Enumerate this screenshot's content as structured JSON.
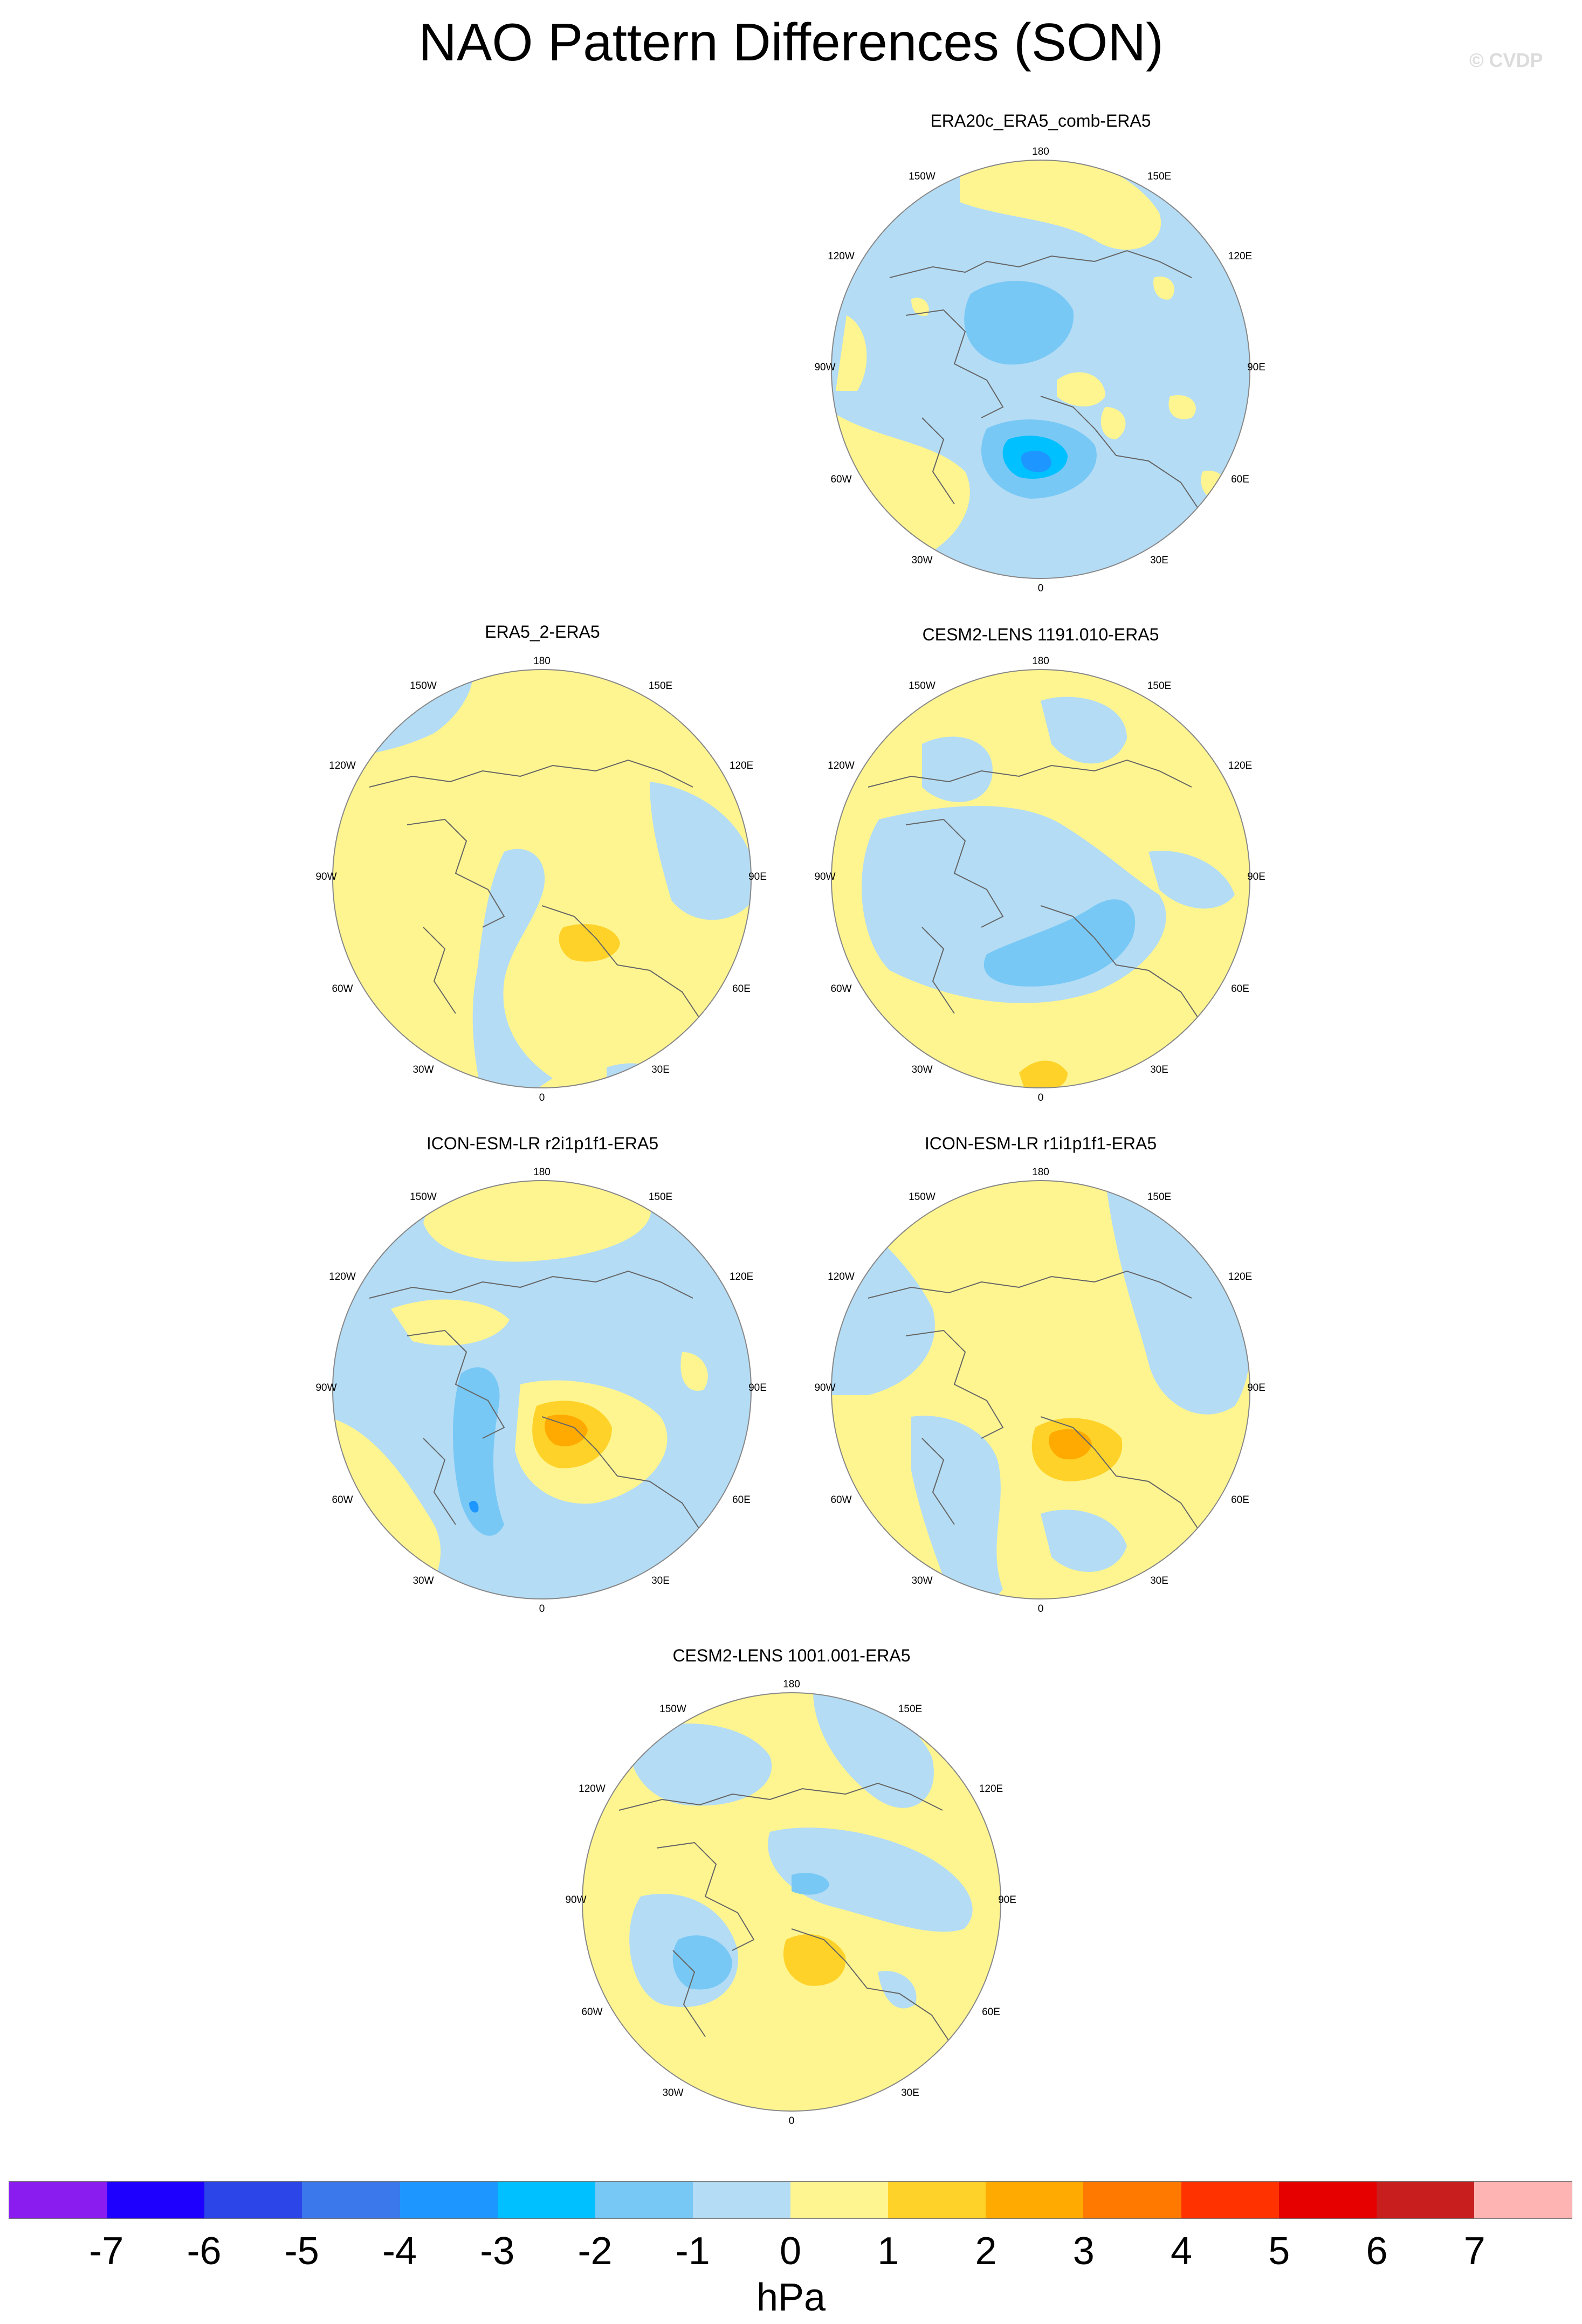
{
  "title": "NAO Pattern Differences (SON)",
  "watermark": "© CVDP",
  "map_labels": {
    "top": "180",
    "top_left": "150W",
    "top_right": "150E",
    "upper_left": "120W",
    "upper_right": "120E",
    "left": "90W",
    "right": "90E",
    "lower_left": "60W",
    "lower_right": "60E",
    "bottom_left": "30W",
    "bottom_right": "30E",
    "bottom": "0"
  },
  "panels": [
    {
      "title": "ERA20c_ERA5_comb-ERA5"
    },
    {
      "title": "ERA5_2-ERA5"
    },
    {
      "title": "CESM2-LENS 1191.010-ERA5"
    },
    {
      "title": "ICON-ESM-LR r2i1p1f1-ERA5"
    },
    {
      "title": "ICON-ESM-LR r1i1p1f1-ERA5"
    },
    {
      "title": "CESM2-LENS 1001.001-ERA5"
    }
  ],
  "colorbar": {
    "unit": "hPa",
    "ticks": [
      "-7",
      "-6",
      "-5",
      "-4",
      "-3",
      "-2",
      "-1",
      "0",
      "1",
      "2",
      "3",
      "4",
      "5",
      "6",
      "7"
    ],
    "colors": [
      "#8a1cf0",
      "#1e00ff",
      "#2b45e8",
      "#3a78ec",
      "#1e96ff",
      "#00c0ff",
      "#78c8f5",
      "#b4dcf5",
      "#fff590",
      "#ffd22a",
      "#ffaa00",
      "#ff7800",
      "#ff3200",
      "#e60000",
      "#c81e1e",
      "#ffb4b4"
    ]
  },
  "colors": {
    "neg1": "#b4dcf5",
    "neg2": "#78c8f5",
    "neg3": "#00c0ff",
    "pos1": "#fff590",
    "pos2": "#ffd22a",
    "pos3": "#ffaa00"
  }
}
